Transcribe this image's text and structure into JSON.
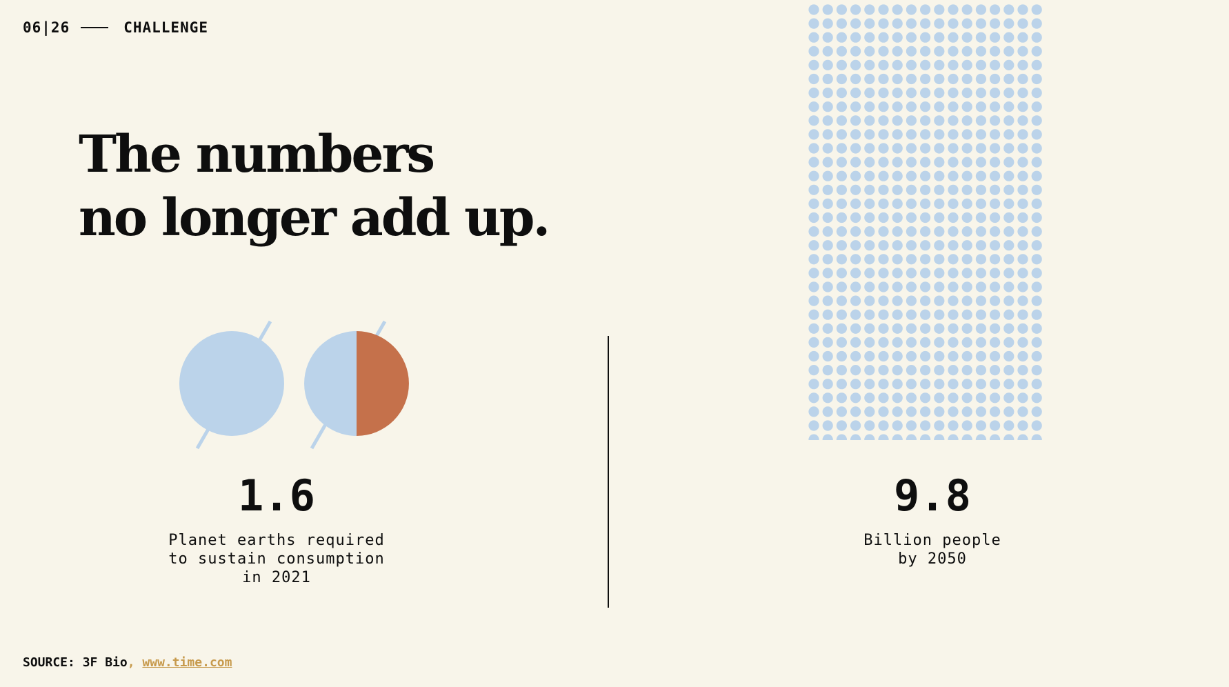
{
  "header": {
    "page": "06|26",
    "section": "CHALLENGE"
  },
  "title": {
    "line1": "The numbers",
    "line2": "no longer add up."
  },
  "stats": {
    "earths": {
      "value": "1.6",
      "description": "Planet earths required\nto sustain consumption\nin 2021"
    },
    "people": {
      "value": "9.8",
      "description": "Billion people\nby 2050"
    }
  },
  "source": {
    "label": "SOURCE: 3F Bio",
    "separator": ", ",
    "link": "www.time.com"
  },
  "colors": {
    "background": "#F8F5EA",
    "planet_blue": "#BBD3EA",
    "planet_orange": "#C5714B",
    "dot_blue": "#BBD3EA",
    "link": "#C79A4C",
    "ink": "#0E0E0E"
  },
  "chart_data": {
    "type": "icon-array",
    "planets_required": 1.6,
    "people_billions_2050": 9.8
  }
}
